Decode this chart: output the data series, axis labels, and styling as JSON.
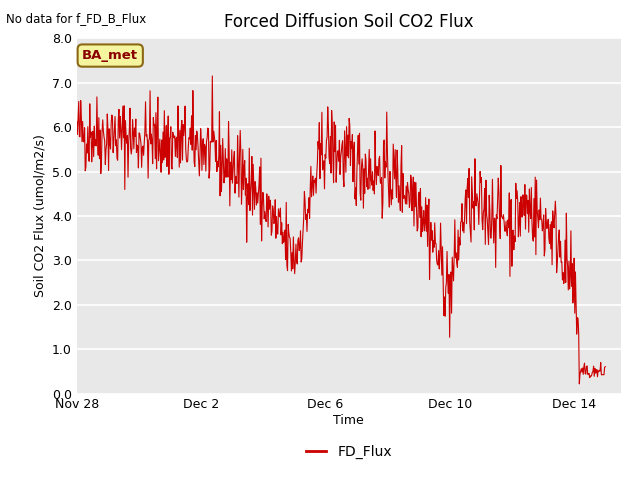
{
  "title": "Forced Diffusion Soil CO2 Flux",
  "xlabel": "Time",
  "ylabel_str": "Soil CO2 Flux (umol/m2/s)",
  "no_data_label": "No data for f_FD_B_Flux",
  "legend_label": "FD_Flux",
  "box_label": "BA_met",
  "ylim": [
    0.0,
    8.0
  ],
  "yticks": [
    0.0,
    1.0,
    2.0,
    3.0,
    4.0,
    5.0,
    6.0,
    7.0,
    8.0
  ],
  "line_color": "#cc0000",
  "plot_bg": "#e8e8e8",
  "fig_bg": "#ffffff",
  "start_day": 0,
  "end_day": 17.5,
  "xtick_positions": [
    0,
    4,
    8,
    12,
    16
  ],
  "xtick_labels": [
    "Nov 28",
    "Dec 2",
    "Dec 6",
    "Dec 10",
    "Dec 14"
  ],
  "seed": 42
}
